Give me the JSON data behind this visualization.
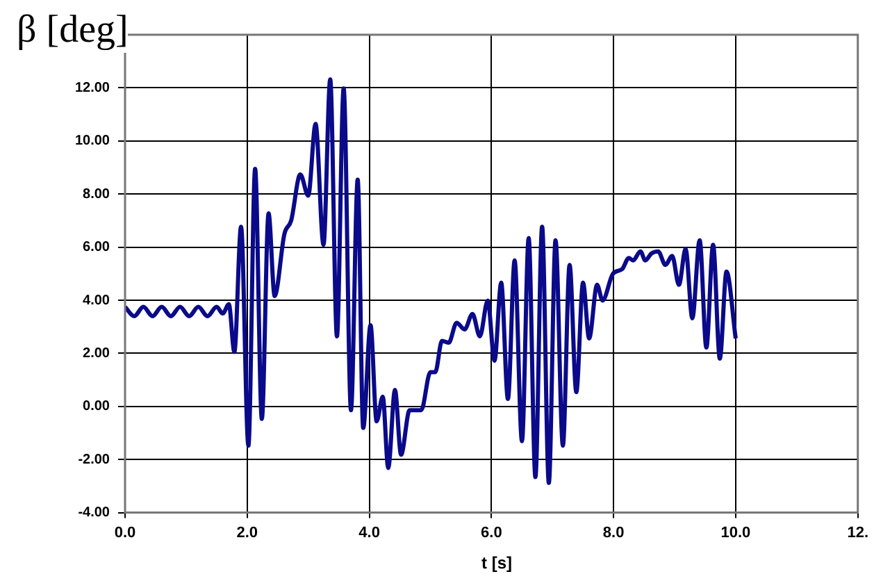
{
  "chart_data": {
    "type": "line",
    "xlabel": "t [s]",
    "ylabel": "β [deg]",
    "color": "#0a0a8a",
    "grid": true,
    "xlim": [
      0,
      12
    ],
    "ylim": [
      -4,
      14
    ],
    "xticks": [
      {
        "value": 0,
        "label": "0.0"
      },
      {
        "value": 2,
        "label": "2.0"
      },
      {
        "value": 4,
        "label": "4.0"
      },
      {
        "value": 6,
        "label": "6.0"
      },
      {
        "value": 8,
        "label": "8.0"
      },
      {
        "value": 10,
        "label": "10.0"
      },
      {
        "value": 12,
        "label": "12."
      }
    ],
    "yticks": [
      {
        "value": -4,
        "label": "-4.00"
      },
      {
        "value": -2,
        "label": "-2.00"
      },
      {
        "value": 0,
        "label": "0.00"
      },
      {
        "value": 2,
        "label": "2.00"
      },
      {
        "value": 4,
        "label": "4.00"
      },
      {
        "value": 6,
        "label": "6.00"
      },
      {
        "value": 8,
        "label": "8.00"
      },
      {
        "value": 10,
        "label": "10.00"
      },
      {
        "value": 12,
        "label": "12.00"
      }
    ],
    "x": [
      0,
      0.15,
      0.3,
      0.45,
      0.6,
      0.75,
      0.9,
      1.05,
      1.2,
      1.35,
      1.5,
      1.6,
      1.7,
      1.79,
      1.9,
      2.02,
      2.13,
      2.24,
      2.35,
      2.45,
      2.61,
      2.72,
      2.87,
      3.0,
      3.12,
      3.25,
      3.36,
      3.47,
      3.58,
      3.7,
      3.81,
      3.9,
      4.02,
      4.12,
      4.22,
      4.31,
      4.42,
      4.52,
      4.66,
      4.85,
      5.0,
      5.08,
      5.19,
      5.3,
      5.43,
      5.56,
      5.69,
      5.81,
      5.94,
      6.05,
      6.16,
      6.27,
      6.38,
      6.5,
      6.61,
      6.72,
      6.83,
      6.94,
      7.05,
      7.17,
      7.28,
      7.39,
      7.5,
      7.6,
      7.73,
      7.82,
      7.99,
      8.14,
      8.25,
      8.32,
      8.44,
      8.52,
      8.62,
      8.73,
      8.85,
      8.96,
      9.07,
      9.18,
      9.29,
      9.41,
      9.52,
      9.63,
      9.74,
      9.85,
      10.0
    ],
    "values": [
      3.75,
      3.4,
      3.75,
      3.4,
      3.75,
      3.4,
      3.75,
      3.4,
      3.75,
      3.4,
      3.75,
      3.5,
      3.85,
      2.05,
      6.77,
      -1.48,
      8.95,
      -0.47,
      7.27,
      4.16,
      6.5,
      7.0,
      8.74,
      7.94,
      10.64,
      6.09,
      12.32,
      2.64,
      11.98,
      -0.14,
      8.54,
      -0.81,
      3.06,
      -0.56,
      0.37,
      -2.32,
      0.62,
      -1.82,
      -0.14,
      -0.14,
      1.29,
      1.29,
      2.47,
      2.4,
      3.15,
      2.9,
      3.48,
      2.64,
      3.99,
      1.72,
      4.66,
      0.28,
      5.5,
      -1.31,
      6.34,
      -2.66,
      6.77,
      -2.88,
      6.26,
      -1.48,
      5.33,
      0.54,
      4.66,
      2.56,
      4.58,
      3.99,
      5.0,
      5.17,
      5.59,
      5.5,
      5.84,
      5.5,
      5.76,
      5.84,
      5.33,
      5.67,
      4.58,
      5.93,
      3.32,
      6.26,
      2.22,
      6.09,
      1.8,
      5.08,
      2.56
    ]
  }
}
